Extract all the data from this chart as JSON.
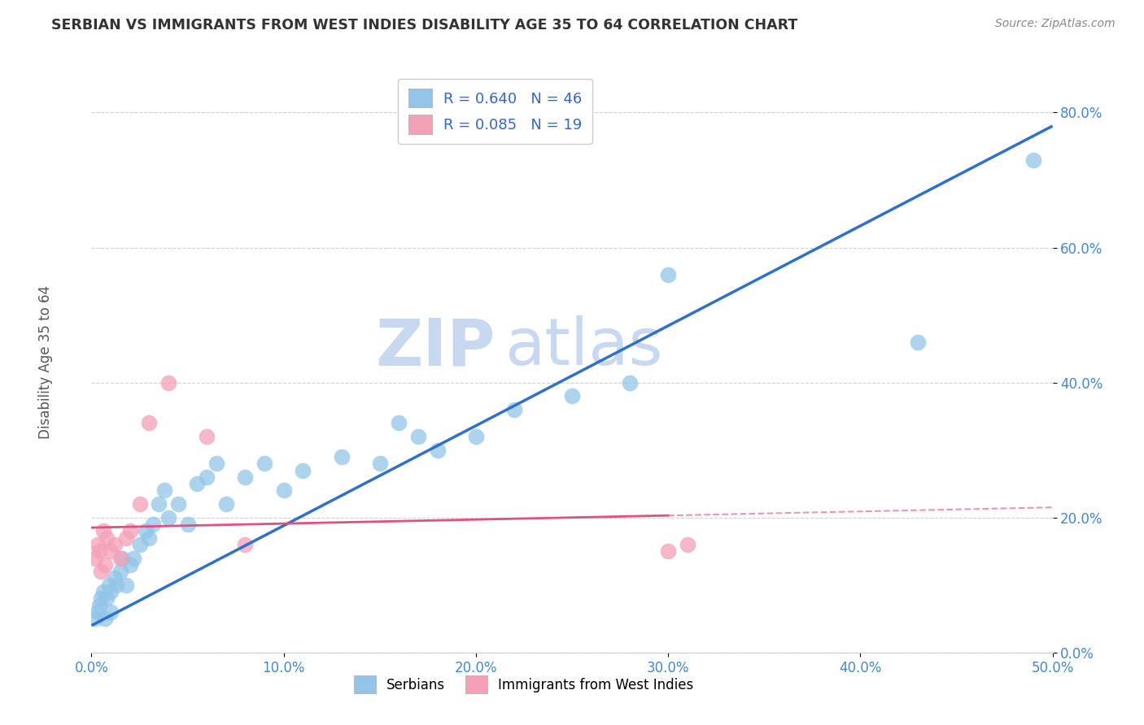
{
  "title": "SERBIAN VS IMMIGRANTS FROM WEST INDIES DISABILITY AGE 35 TO 64 CORRELATION CHART",
  "source": "Source: ZipAtlas.com",
  "xlim": [
    0.0,
    0.5
  ],
  "ylim": [
    0.0,
    0.87
  ],
  "xlabel_tick_vals": [
    0.0,
    0.1,
    0.2,
    0.3,
    0.4,
    0.5
  ],
  "xlabel_ticks": [
    "0.0%",
    "10.0%",
    "20.0%",
    "30.0%",
    "40.0%",
    "50.0%"
  ],
  "ylabel_tick_vals": [
    0.0,
    0.2,
    0.4,
    0.6,
    0.8
  ],
  "ylabel_ticks": [
    "0.0%",
    "20.0%",
    "40.0%",
    "60.0%",
    "80.0%"
  ],
  "legend_labels": [
    "Serbians",
    "Immigrants from West Indies"
  ],
  "r_serbian": 0.64,
  "n_serbian": 46,
  "r_westindies": 0.085,
  "n_westindies": 19,
  "serbian_color": "#92C5E8",
  "westindies_color": "#F4A0B8",
  "serbian_line_color": "#3070C8",
  "westindies_line_color": "#E05080",
  "background_color": "#FFFFFF",
  "watermark_text1": "ZIP",
  "watermark_text2": "atlas",
  "watermark_color": "#C8D8F0",
  "serbian_x": [
    0.002,
    0.003,
    0.004,
    0.005,
    0.006,
    0.007,
    0.008,
    0.009,
    0.01,
    0.01,
    0.012,
    0.013,
    0.015,
    0.016,
    0.018,
    0.02,
    0.022,
    0.025,
    0.028,
    0.03,
    0.032,
    0.035,
    0.038,
    0.04,
    0.045,
    0.05,
    0.055,
    0.06,
    0.065,
    0.07,
    0.08,
    0.09,
    0.1,
    0.11,
    0.13,
    0.15,
    0.16,
    0.17,
    0.18,
    0.2,
    0.22,
    0.25,
    0.28,
    0.3,
    0.43,
    0.49
  ],
  "serbian_y": [
    0.05,
    0.06,
    0.07,
    0.08,
    0.09,
    0.05,
    0.08,
    0.1,
    0.06,
    0.09,
    0.11,
    0.1,
    0.12,
    0.14,
    0.1,
    0.13,
    0.14,
    0.16,
    0.18,
    0.17,
    0.19,
    0.22,
    0.24,
    0.2,
    0.22,
    0.19,
    0.25,
    0.26,
    0.28,
    0.22,
    0.26,
    0.28,
    0.24,
    0.27,
    0.29,
    0.28,
    0.34,
    0.32,
    0.3,
    0.32,
    0.36,
    0.38,
    0.4,
    0.56,
    0.46,
    0.73
  ],
  "westindies_x": [
    0.002,
    0.003,
    0.004,
    0.005,
    0.006,
    0.007,
    0.008,
    0.01,
    0.012,
    0.015,
    0.018,
    0.02,
    0.025,
    0.03,
    0.04,
    0.06,
    0.08,
    0.3,
    0.31
  ],
  "westindies_y": [
    0.14,
    0.16,
    0.15,
    0.12,
    0.18,
    0.13,
    0.17,
    0.15,
    0.16,
    0.14,
    0.17,
    0.18,
    0.22,
    0.34,
    0.4,
    0.32,
    0.16,
    0.15,
    0.16
  ],
  "line_serbian_x0": 0.0,
  "line_serbian_y0": 0.04,
  "line_serbian_x1": 0.5,
  "line_serbian_y1": 0.78,
  "line_wi_x0": 0.0,
  "line_wi_y0": 0.185,
  "line_wi_x1": 0.5,
  "line_wi_y1": 0.215
}
